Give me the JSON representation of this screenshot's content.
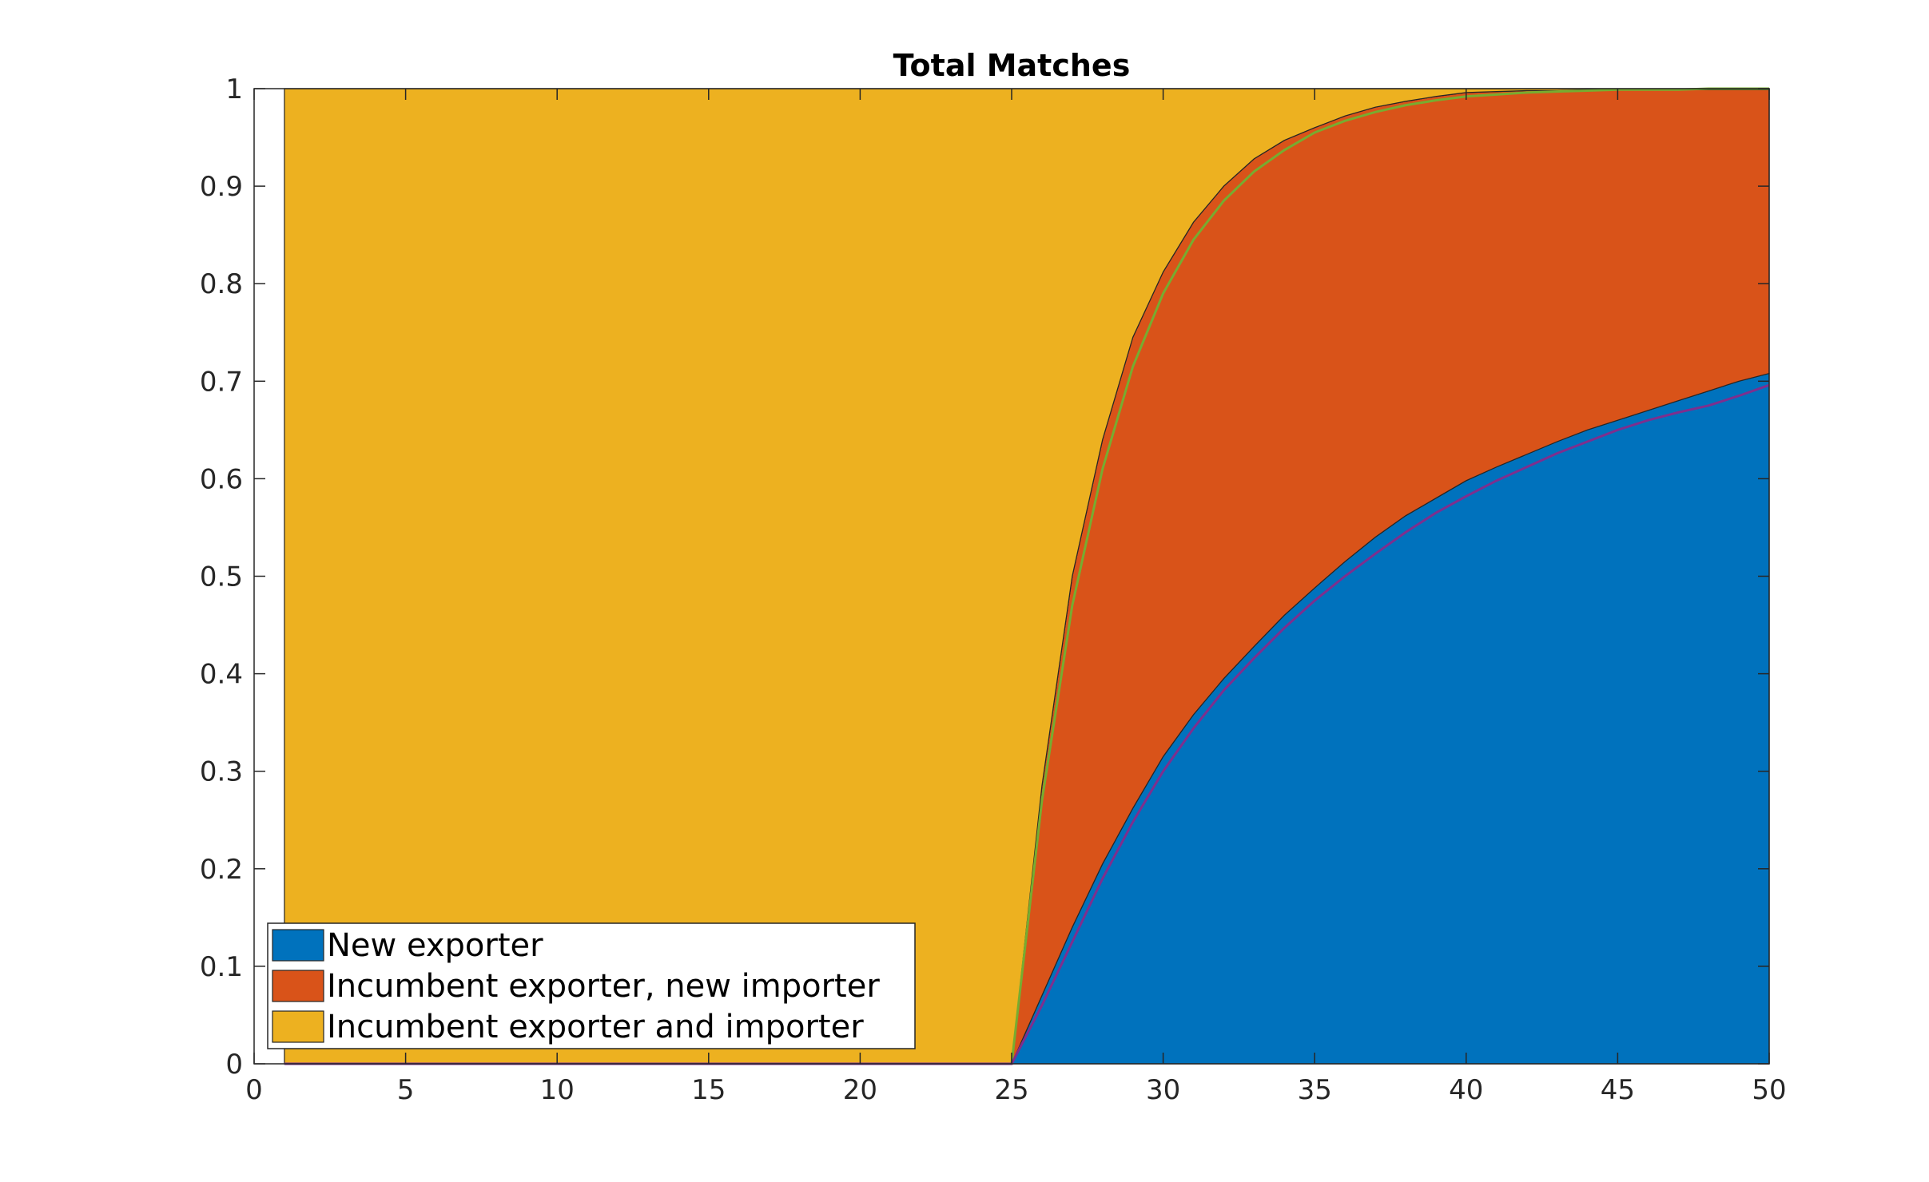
{
  "chart_data": {
    "type": "area",
    "stacked": true,
    "title": "Total Matches",
    "xlabel": "",
    "ylabel": "",
    "xlim": [
      0,
      50
    ],
    "ylim": [
      0,
      1
    ],
    "x_ticks": [
      0,
      5,
      10,
      15,
      20,
      25,
      30,
      35,
      40,
      45,
      50
    ],
    "y_ticks": [
      0,
      0.1,
      0.2,
      0.3,
      0.4,
      0.5,
      0.6,
      0.7,
      0.8,
      0.9,
      1
    ],
    "x_tick_labels": [
      "0",
      "5",
      "10",
      "15",
      "20",
      "25",
      "30",
      "35",
      "40",
      "45",
      "50"
    ],
    "y_tick_labels": [
      "0",
      "0.1",
      "0.2",
      "0.3",
      "0.4",
      "0.5",
      "0.6",
      "0.7",
      "0.8",
      "0.9",
      "1"
    ],
    "grid": false,
    "legend_position": "bottom-left",
    "x": [
      1,
      2,
      3,
      4,
      5,
      6,
      7,
      8,
      9,
      10,
      11,
      12,
      13,
      14,
      15,
      16,
      17,
      18,
      19,
      20,
      21,
      22,
      23,
      24,
      25,
      26,
      27,
      28,
      29,
      30,
      31,
      32,
      33,
      34,
      35,
      36,
      37,
      38,
      39,
      40,
      41,
      42,
      43,
      44,
      45,
      46,
      47,
      48,
      49,
      50
    ],
    "series": [
      {
        "name": "New exporter",
        "color": "#0072BD",
        "values": [
          0,
          0,
          0,
          0,
          0,
          0,
          0,
          0,
          0,
          0,
          0,
          0,
          0,
          0,
          0,
          0,
          0,
          0,
          0,
          0,
          0,
          0,
          0,
          0,
          0,
          0.07,
          0.14,
          0.205,
          0.262,
          0.315,
          0.358,
          0.395,
          0.428,
          0.46,
          0.488,
          0.515,
          0.54,
          0.562,
          0.58,
          0.598,
          0.612,
          0.625,
          0.638,
          0.65,
          0.66,
          0.67,
          0.68,
          0.69,
          0.7,
          0.708
        ]
      },
      {
        "name": "Incumbent exporter, new importer",
        "color": "#D95319",
        "values": [
          0,
          0,
          0,
          0,
          0,
          0,
          0,
          0,
          0,
          0,
          0,
          0,
          0,
          0,
          0,
          0,
          0,
          0,
          0,
          0,
          0,
          0,
          0,
          0,
          0,
          0.215,
          0.36,
          0.435,
          0.483,
          0.497,
          0.505,
          0.505,
          0.5,
          0.487,
          0.472,
          0.457,
          0.441,
          0.425,
          0.412,
          0.398,
          0.385,
          0.373,
          0.36,
          0.349,
          0.339,
          0.329,
          0.319,
          0.309,
          0.299,
          0.291
        ]
      },
      {
        "name": "Incumbent exporter and importer",
        "color": "#EDB120",
        "values": [
          1,
          1,
          1,
          1,
          1,
          1,
          1,
          1,
          1,
          1,
          1,
          1,
          1,
          1,
          1,
          1,
          1,
          1,
          1,
          1,
          1,
          1,
          1,
          1,
          1,
          0.715,
          0.5,
          0.36,
          0.255,
          0.188,
          0.137,
          0.1,
          0.072,
          0.053,
          0.04,
          0.028,
          0.019,
          0.013,
          0.008,
          0.004,
          0.003,
          0.002,
          0.002,
          0.001,
          0.001,
          0.001,
          0.001,
          0.001,
          0.001,
          0.001
        ]
      }
    ],
    "overlay_lines": [
      {
        "color": "#77AC30",
        "values": [
          0,
          0,
          0,
          0,
          0,
          0,
          0,
          0,
          0,
          0,
          0,
          0,
          0,
          0,
          0,
          0,
          0,
          0,
          0,
          0,
          0,
          0,
          0,
          0,
          0,
          0.27,
          0.47,
          0.61,
          0.715,
          0.79,
          0.845,
          0.885,
          0.915,
          0.937,
          0.955,
          0.967,
          0.976,
          0.983,
          0.988,
          0.992,
          0.994,
          0.996,
          0.997,
          0.998,
          0.999,
          0.999,
          0.999,
          1,
          1,
          1
        ]
      },
      {
        "color": "#7E2F8E",
        "values": [
          0,
          0,
          0,
          0,
          0,
          0,
          0,
          0,
          0,
          0,
          0,
          0,
          0,
          0,
          0,
          0,
          0,
          0,
          0,
          0,
          0,
          0,
          0,
          0,
          0,
          0.06,
          0.125,
          0.19,
          0.248,
          0.3,
          0.344,
          0.383,
          0.416,
          0.447,
          0.475,
          0.5,
          0.523,
          0.545,
          0.565,
          0.582,
          0.598,
          0.612,
          0.626,
          0.638,
          0.65,
          0.66,
          0.668,
          0.675,
          0.685,
          0.696
        ]
      }
    ]
  }
}
